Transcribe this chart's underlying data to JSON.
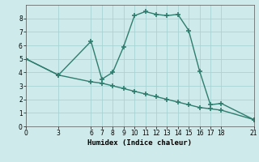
{
  "xlabel": "Humidex (Indice chaleur)",
  "bg_color": "#ceeaea",
  "line_color": "#2e7d6e",
  "line1_x": [
    0,
    3,
    6,
    7,
    8,
    9,
    10,
    11,
    12,
    13,
    14,
    15,
    16,
    17,
    18,
    21
  ],
  "line1_y": [
    5.0,
    3.8,
    6.3,
    3.5,
    4.0,
    5.9,
    8.2,
    8.5,
    8.3,
    8.2,
    8.3,
    7.1,
    4.1,
    1.6,
    1.7,
    0.5
  ],
  "line2_x": [
    0,
    3,
    6,
    7,
    8,
    9,
    10,
    11,
    12,
    13,
    14,
    15,
    16,
    17,
    18,
    21
  ],
  "line2_y": [
    5.0,
    3.8,
    3.3,
    3.2,
    3.0,
    2.8,
    2.6,
    2.4,
    2.2,
    2.0,
    1.8,
    1.6,
    1.4,
    1.3,
    1.2,
    0.5
  ],
  "xlim": [
    0,
    21
  ],
  "ylim": [
    0,
    9
  ],
  "xticks": [
    0,
    3,
    6,
    7,
    8,
    9,
    10,
    11,
    12,
    13,
    14,
    15,
    16,
    17,
    18,
    21
  ],
  "yticks": [
    0,
    1,
    2,
    3,
    4,
    5,
    6,
    7,
    8
  ],
  "grid_color": "#a8d4d4",
  "marker": "+",
  "markersize": 4,
  "markeredgewidth": 1.2,
  "linewidth": 1.0,
  "label_fontsize": 6.5,
  "tick_fontsize": 5.5
}
